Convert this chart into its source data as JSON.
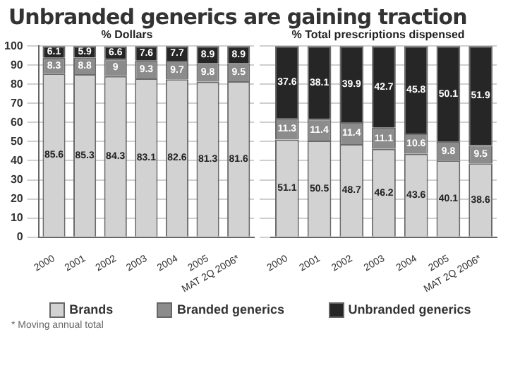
{
  "chart_data": [
    {
      "type": "bar",
      "title": "Unbranded generics are gaining traction",
      "subtitle": "% Dollars",
      "annotations": [
        "* Moving annual total"
      ],
      "categories": [
        "2000",
        "2001",
        "2002",
        "2003",
        "2004",
        "2005",
        "MAT 2Q 2006*"
      ],
      "stacked": true,
      "data_labels": true,
      "grid": "y",
      "legend": "bottom",
      "ylim": [
        0,
        100
      ],
      "yticks": [
        0,
        10,
        20,
        30,
        40,
        50,
        60,
        70,
        80,
        90,
        100
      ],
      "series": [
        {
          "name": "Brands",
          "color": "#d2d2d2",
          "values": [
            85.6,
            85.3,
            84.3,
            83.1,
            82.6,
            81.3,
            81.6
          ]
        },
        {
          "name": "Branded generics",
          "color": "#8c8c8c",
          "values": [
            8.3,
            8.8,
            9.0,
            9.3,
            9.7,
            9.8,
            9.5
          ]
        },
        {
          "name": "Unbranded generics",
          "color": "#262626",
          "values": [
            6.1,
            5.9,
            6.6,
            7.6,
            7.7,
            8.9,
            8.9
          ]
        }
      ]
    },
    {
      "type": "bar",
      "subtitle": "% Total prescriptions dispensed",
      "categories": [
        "2000",
        "2001",
        "2002",
        "2003",
        "2004",
        "2005",
        "MAT 2Q 2006*"
      ],
      "stacked": true,
      "data_labels": true,
      "grid": "y",
      "tick_labels": "x",
      "ylim": [
        0,
        100
      ],
      "yticks": [
        0,
        10,
        20,
        30,
        40,
        50,
        60,
        70,
        80,
        90,
        100
      ],
      "series": [
        {
          "color": "#d2d2d2",
          "values": [
            51.1,
            50.5,
            48.7,
            46.2,
            43.6,
            40.1,
            38.6
          ]
        },
        {
          "color": "#8c8c8c",
          "values": [
            11.3,
            11.4,
            11.4,
            11.1,
            10.6,
            9.8,
            9.5
          ]
        },
        {
          "color": "#262626",
          "values": [
            37.6,
            38.1,
            39.9,
            42.7,
            45.8,
            50.1,
            51.9
          ]
        }
      ]
    }
  ]
}
